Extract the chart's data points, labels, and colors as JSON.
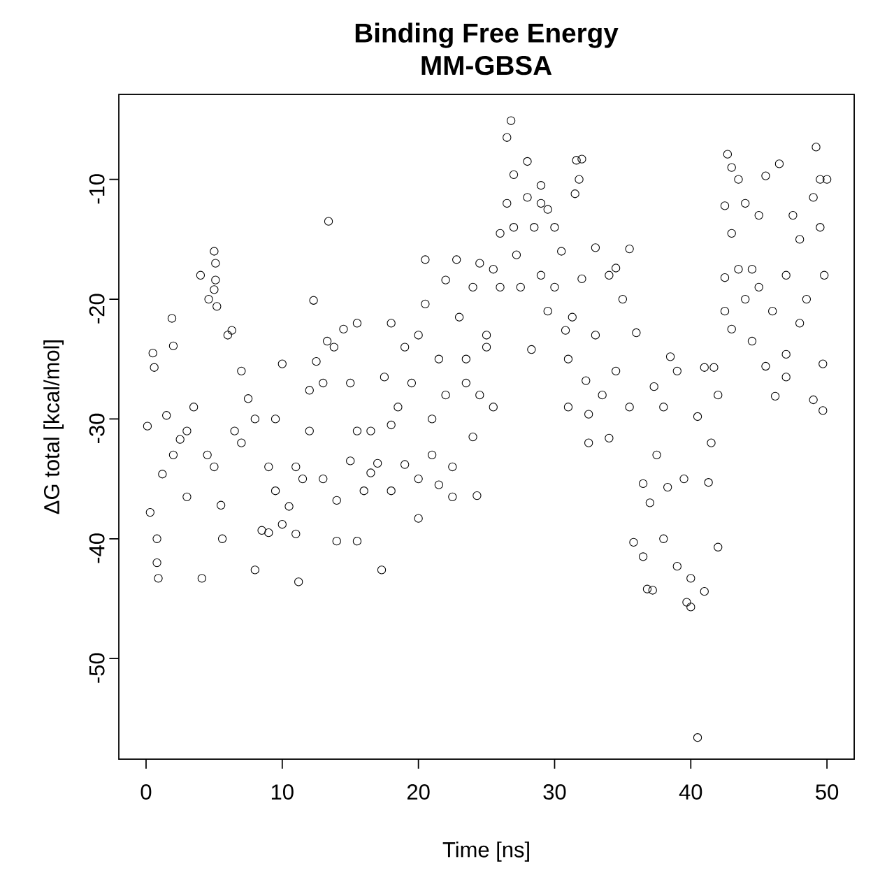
{
  "chart_data": {
    "type": "scatter",
    "title": "Binding Free Energy",
    "subtitle": "MM-GBSA",
    "xlabel": "Time [ns]",
    "ylabel": "ΔG total [kcal/mol]",
    "marker": "circle",
    "color": "#000000",
    "xlim": [
      -2,
      52
    ],
    "ylim": [
      -58.4,
      -2.9
    ],
    "xticks": [
      0,
      10,
      20,
      30,
      40,
      50
    ],
    "yticks": [
      -50,
      -40,
      -30,
      -20,
      -10
    ],
    "x": [
      0.5,
      0.6,
      0.8,
      0.8,
      0.9,
      1.9,
      2,
      4,
      4.1,
      4.6,
      5,
      5.1,
      5.1,
      5,
      5.2,
      5.6,
      5.5,
      3,
      2.5,
      1.2,
      0.1,
      0.3,
      1.5,
      3.5,
      4.5,
      6,
      6.3,
      7,
      6.5,
      7.5,
      8,
      8.5,
      9,
      9,
      9.5,
      10,
      10,
      10.5,
      11,
      11.2,
      11.5,
      12,
      12,
      12.3,
      12.5,
      13,
      13.3,
      13.4,
      13.8,
      14,
      14,
      14.5,
      15,
      15,
      15.5,
      15.5,
      16,
      16.5,
      17,
      17.3,
      17.5,
      18,
      18,
      18.5,
      19,
      19,
      20,
      20,
      20,
      20.5,
      20.5,
      21,
      21.5,
      21.5,
      22,
      22,
      22.5,
      22.5,
      22.8,
      23,
      23.5,
      24,
      24,
      24.3,
      24.5,
      24.5,
      25,
      25.5,
      25.5,
      26,
      26,
      26.5,
      26.5,
      26.8,
      27,
      27.2,
      27.5,
      28,
      28,
      28.3,
      28.5,
      29,
      29,
      29.5,
      29.5,
      30,
      30,
      30.5,
      30.8,
      31,
      31,
      31.3,
      31.5,
      31.6,
      31.8,
      32,
      32,
      32.3,
      32.5,
      32.5,
      33,
      33,
      33.5,
      34,
      34,
      34.5,
      34.5,
      35,
      35.5,
      35.5,
      35.8,
      36,
      36.5,
      36.5,
      36.8,
      37.2,
      37,
      37.3,
      37.5,
      38,
      38,
      38.3,
      38.5,
      39,
      39,
      39.5,
      39.7,
      40,
      40,
      40.5,
      40.5,
      41,
      41,
      41.3,
      41.5,
      41.7,
      42,
      42,
      42.5,
      42.5,
      42.5,
      42.7,
      43,
      43,
      43,
      43.5,
      43.5,
      44,
      44,
      44.5,
      44.5,
      45,
      45,
      45.5,
      45.5,
      46,
      46.2,
      46.5,
      47,
      47,
      47,
      47.5,
      48,
      48,
      48.5,
      49,
      49,
      49.2,
      49.5,
      49.5,
      49.7,
      49.7,
      50,
      49.8,
      2,
      3,
      5,
      7,
      8,
      9.5,
      11,
      13,
      15.5,
      16.5,
      18,
      19.5,
      21,
      23.5,
      25,
      27,
      29
    ],
    "values": [
      -24.5,
      -25.7,
      -40,
      -42,
      -43.3,
      -21.6,
      -23.9,
      -18,
      -43.3,
      -20,
      -16,
      -17,
      -18.4,
      -19.2,
      -20.6,
      -40,
      -37.2,
      -36.5,
      -31.7,
      -34.6,
      -30.6,
      -37.8,
      -29.7,
      -29,
      -33,
      -23,
      -22.6,
      -26,
      -31,
      -28.3,
      -42.6,
      -39.3,
      -39.5,
      -34,
      -30,
      -25.4,
      -38.8,
      -37.3,
      -39.6,
      -43.6,
      -35,
      -31,
      -27.6,
      -20.1,
      -25.2,
      -27,
      -23.5,
      -13.5,
      -24,
      -40.2,
      -36.8,
      -22.5,
      -33.5,
      -27,
      -22,
      -40.2,
      -36,
      -31,
      -33.7,
      -42.6,
      -26.5,
      -22,
      -36,
      -29,
      -33.8,
      -24,
      -38.3,
      -35,
      -23,
      -16.7,
      -20.4,
      -30,
      -35.5,
      -25,
      -18.4,
      -28,
      -36.5,
      -34,
      -16.7,
      -21.5,
      -25,
      -19,
      -31.5,
      -36.4,
      -17,
      -28,
      -23,
      -29,
      -17.5,
      -14.5,
      -19,
      -12,
      -6.5,
      -5.1,
      -9.6,
      -16.3,
      -19,
      -8.5,
      -11.5,
      -24.2,
      -14,
      -10.5,
      -18,
      -21,
      -12.5,
      -19,
      -14,
      -16,
      -22.6,
      -29,
      -25,
      -21.5,
      -11.2,
      -8.4,
      -10,
      -8.3,
      -18.3,
      -26.8,
      -32,
      -29.6,
      -15.7,
      -23,
      -28,
      -18,
      -31.6,
      -17.4,
      -26,
      -20,
      -15.8,
      -29,
      -40.3,
      -22.8,
      -35.4,
      -41.5,
      -44.2,
      -44.3,
      -37,
      -27.3,
      -33,
      -29,
      -40,
      -35.7,
      -24.8,
      -42.3,
      -26,
      -35,
      -45.3,
      -43.3,
      -45.7,
      -56.6,
      -29.8,
      -25.7,
      -44.4,
      -35.3,
      -32,
      -25.7,
      -40.7,
      -28,
      -12.2,
      -18.2,
      -21,
      -7.9,
      -9,
      -14.5,
      -22.5,
      -17.5,
      -10,
      -12,
      -20,
      -23.5,
      -17.5,
      -19,
      -13,
      -9.7,
      -25.6,
      -21,
      -28.1,
      -8.7,
      -18,
      -24.6,
      -26.5,
      -13,
      -15,
      -22,
      -20,
      -28.4,
      -11.5,
      -7.3,
      -14,
      -10,
      -25.4,
      -29.3,
      -10,
      -18,
      -33,
      -31,
      -34,
      -32,
      -30,
      -36,
      -34,
      -35,
      -31,
      -34.5,
      -30.5,
      -27,
      -33,
      -27,
      -24,
      -14,
      -12
    ]
  }
}
